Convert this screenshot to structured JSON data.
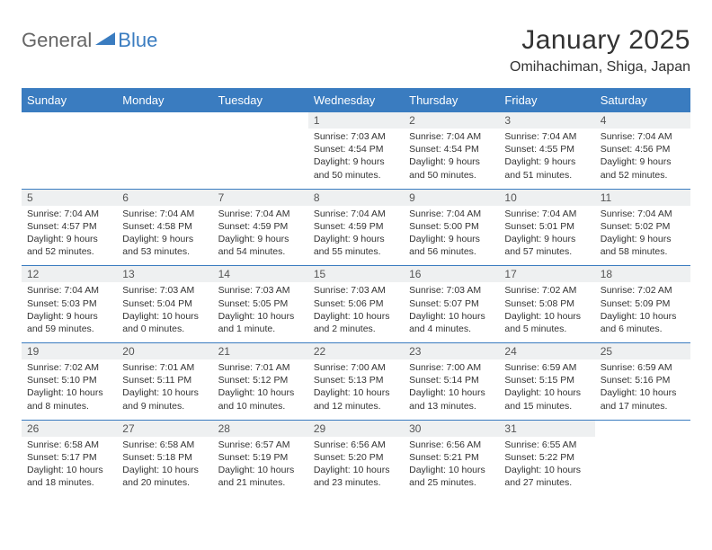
{
  "brand": {
    "part1": "General",
    "part2": "Blue"
  },
  "title": "January 2025",
  "location": "Omihachiman, Shiga, Japan",
  "colors": {
    "accent": "#3a7cc0",
    "daynum_bg": "#eef0f1",
    "text": "#333333",
    "logo_gray": "#666666"
  },
  "weekdays": [
    "Sunday",
    "Monday",
    "Tuesday",
    "Wednesday",
    "Thursday",
    "Friday",
    "Saturday"
  ],
  "weeks": [
    [
      null,
      null,
      null,
      {
        "n": "1",
        "sr": "7:03 AM",
        "ss": "4:54 PM",
        "dl": "9 hours and 50 minutes."
      },
      {
        "n": "2",
        "sr": "7:04 AM",
        "ss": "4:54 PM",
        "dl": "9 hours and 50 minutes."
      },
      {
        "n": "3",
        "sr": "7:04 AM",
        "ss": "4:55 PM",
        "dl": "9 hours and 51 minutes."
      },
      {
        "n": "4",
        "sr": "7:04 AM",
        "ss": "4:56 PM",
        "dl": "9 hours and 52 minutes."
      }
    ],
    [
      {
        "n": "5",
        "sr": "7:04 AM",
        "ss": "4:57 PM",
        "dl": "9 hours and 52 minutes."
      },
      {
        "n": "6",
        "sr": "7:04 AM",
        "ss": "4:58 PM",
        "dl": "9 hours and 53 minutes."
      },
      {
        "n": "7",
        "sr": "7:04 AM",
        "ss": "4:59 PM",
        "dl": "9 hours and 54 minutes."
      },
      {
        "n": "8",
        "sr": "7:04 AM",
        "ss": "4:59 PM",
        "dl": "9 hours and 55 minutes."
      },
      {
        "n": "9",
        "sr": "7:04 AM",
        "ss": "5:00 PM",
        "dl": "9 hours and 56 minutes."
      },
      {
        "n": "10",
        "sr": "7:04 AM",
        "ss": "5:01 PM",
        "dl": "9 hours and 57 minutes."
      },
      {
        "n": "11",
        "sr": "7:04 AM",
        "ss": "5:02 PM",
        "dl": "9 hours and 58 minutes."
      }
    ],
    [
      {
        "n": "12",
        "sr": "7:04 AM",
        "ss": "5:03 PM",
        "dl": "9 hours and 59 minutes."
      },
      {
        "n": "13",
        "sr": "7:03 AM",
        "ss": "5:04 PM",
        "dl": "10 hours and 0 minutes."
      },
      {
        "n": "14",
        "sr": "7:03 AM",
        "ss": "5:05 PM",
        "dl": "10 hours and 1 minute."
      },
      {
        "n": "15",
        "sr": "7:03 AM",
        "ss": "5:06 PM",
        "dl": "10 hours and 2 minutes."
      },
      {
        "n": "16",
        "sr": "7:03 AM",
        "ss": "5:07 PM",
        "dl": "10 hours and 4 minutes."
      },
      {
        "n": "17",
        "sr": "7:02 AM",
        "ss": "5:08 PM",
        "dl": "10 hours and 5 minutes."
      },
      {
        "n": "18",
        "sr": "7:02 AM",
        "ss": "5:09 PM",
        "dl": "10 hours and 6 minutes."
      }
    ],
    [
      {
        "n": "19",
        "sr": "7:02 AM",
        "ss": "5:10 PM",
        "dl": "10 hours and 8 minutes."
      },
      {
        "n": "20",
        "sr": "7:01 AM",
        "ss": "5:11 PM",
        "dl": "10 hours and 9 minutes."
      },
      {
        "n": "21",
        "sr": "7:01 AM",
        "ss": "5:12 PM",
        "dl": "10 hours and 10 minutes."
      },
      {
        "n": "22",
        "sr": "7:00 AM",
        "ss": "5:13 PM",
        "dl": "10 hours and 12 minutes."
      },
      {
        "n": "23",
        "sr": "7:00 AM",
        "ss": "5:14 PM",
        "dl": "10 hours and 13 minutes."
      },
      {
        "n": "24",
        "sr": "6:59 AM",
        "ss": "5:15 PM",
        "dl": "10 hours and 15 minutes."
      },
      {
        "n": "25",
        "sr": "6:59 AM",
        "ss": "5:16 PM",
        "dl": "10 hours and 17 minutes."
      }
    ],
    [
      {
        "n": "26",
        "sr": "6:58 AM",
        "ss": "5:17 PM",
        "dl": "10 hours and 18 minutes."
      },
      {
        "n": "27",
        "sr": "6:58 AM",
        "ss": "5:18 PM",
        "dl": "10 hours and 20 minutes."
      },
      {
        "n": "28",
        "sr": "6:57 AM",
        "ss": "5:19 PM",
        "dl": "10 hours and 21 minutes."
      },
      {
        "n": "29",
        "sr": "6:56 AM",
        "ss": "5:20 PM",
        "dl": "10 hours and 23 minutes."
      },
      {
        "n": "30",
        "sr": "6:56 AM",
        "ss": "5:21 PM",
        "dl": "10 hours and 25 minutes."
      },
      {
        "n": "31",
        "sr": "6:55 AM",
        "ss": "5:22 PM",
        "dl": "10 hours and 27 minutes."
      },
      null
    ]
  ],
  "labels": {
    "sunrise": "Sunrise:",
    "sunset": "Sunset:",
    "daylight": "Daylight:"
  }
}
